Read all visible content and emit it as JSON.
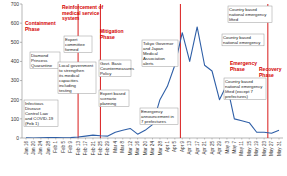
{
  "chart_data": {
    "type": "line",
    "color": "#2f5fa7",
    "grid": false,
    "categories": [
      "Jan 16",
      "Jan 20",
      "Jan 24",
      "Jan 28",
      "Feb 1",
      "Feb 5",
      "Feb 9",
      "Feb 13",
      "Feb 17",
      "Feb 21",
      "Feb 25",
      "Feb 29",
      "Mar 4",
      "Mar 8",
      "Mar 12",
      "Mar 16",
      "Mar 20",
      "Mar 24",
      "Mar 28",
      "Apr 1",
      "Apr 5",
      "Apr 9",
      "Apr 13",
      "Apr 17",
      "Apr 21",
      "Apr 25",
      "Apr 29",
      "May 3",
      "May 7",
      "May 11",
      "May 15",
      "May 19",
      "May 23",
      "May 27",
      "May 31"
    ],
    "values": [
      1,
      0,
      1,
      2,
      3,
      1,
      2,
      5,
      10,
      15,
      12,
      10,
      30,
      40,
      50,
      20,
      40,
      70,
      200,
      270,
      380,
      550,
      400,
      580,
      380,
      350,
      200,
      280,
      100,
      90,
      80,
      30,
      30,
      25,
      40
    ],
    "ylim": [
      0,
      700
    ],
    "yticks": [
      0,
      100,
      200,
      300,
      400,
      500,
      600,
      700
    ],
    "phases": [
      "Containment Phase",
      "Reinforcement of medical service system",
      "Mitigation Phase",
      "Emergency Phase",
      "Recovery Phase"
    ],
    "annotations": [
      "Infectious Disease Control Law and COVID-19 (Feb 1)",
      "Diamond Princess Quarantine",
      "Expert committee formed",
      "Local government to strengthen its medical capacities including testing",
      "Govt. Basic Countermeasures Policy",
      "Expert based scenario planning",
      "Tokyo Governor and Japan Medical Association alerts",
      "Emergency announcement in 7 prefectures",
      "Country based national emergency",
      "Country based national emergency lifted (except 7 prefectures)",
      "Country based national emergency lifted"
    ]
  }
}
